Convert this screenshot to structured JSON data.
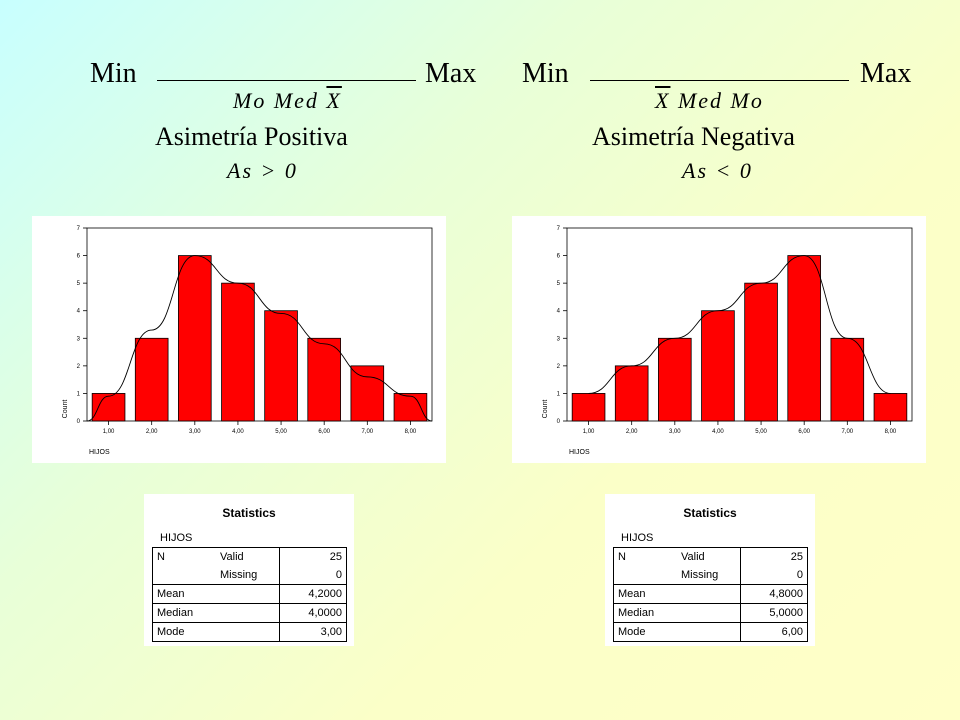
{
  "left": {
    "min_label": "Min",
    "max_label": "Max",
    "order_mo": "Mo",
    "order_med": "Med",
    "order_x": "X",
    "title": "Asimetría Positiva",
    "condition": "As > 0"
  },
  "right": {
    "min_label": "Min",
    "max_label": "Max",
    "order_x": "X",
    "order_med": "Med",
    "order_mo": "Mo",
    "title": "Asimetría Negativa",
    "condition": "As < 0"
  },
  "chart_data": [
    {
      "type": "bar",
      "categories": [
        "1,00",
        "2,00",
        "3,00",
        "4,00",
        "5,00",
        "6,00",
        "7,00",
        "8,00"
      ],
      "values": [
        1,
        3,
        6,
        5,
        4,
        3,
        2,
        1
      ],
      "ylabel": "Count",
      "xlabel": "HIJOS",
      "ylim": [
        0,
        7
      ],
      "yticks": [
        "0",
        "1",
        "2",
        "3",
        "4",
        "5",
        "6",
        "7"
      ],
      "bar_color": "#ff0000",
      "curve": "normal",
      "curve_points": [
        0,
        0.9,
        3.3,
        6.0,
        5.0,
        3.9,
        2.8,
        1.6,
        0.9,
        0
      ]
    },
    {
      "type": "bar",
      "categories": [
        "1,00",
        "2,00",
        "3,00",
        "4,00",
        "5,00",
        "6,00",
        "7,00",
        "8,00"
      ],
      "values": [
        1,
        2,
        3,
        4,
        5,
        6,
        3,
        1
      ],
      "ylabel": "Count",
      "xlabel": "HIJOS",
      "ylim": [
        0,
        7
      ],
      "yticks": [
        "0",
        "1",
        "2",
        "3",
        "4",
        "5",
        "6",
        "7"
      ],
      "bar_color": "#ff0000",
      "curve": "normal",
      "curve_points": [
        1.0,
        2.0,
        3.0,
        4.0,
        5.0,
        6.0,
        3.0,
        1.0
      ]
    }
  ],
  "stats_left": {
    "title": "Statistics",
    "variable": "HIJOS",
    "rows": [
      {
        "l1": "N",
        "l2": "Valid",
        "v": "25"
      },
      {
        "l1": "",
        "l2": "Missing",
        "v": "0"
      },
      {
        "l1": "Mean",
        "l2": "",
        "v": "4,2000"
      },
      {
        "l1": "Median",
        "l2": "",
        "v": "4,0000"
      },
      {
        "l1": "Mode",
        "l2": "",
        "v": "3,00"
      }
    ]
  },
  "stats_right": {
    "title": "Statistics",
    "variable": "HIJOS",
    "rows": [
      {
        "l1": "N",
        "l2": "Valid",
        "v": "25"
      },
      {
        "l1": "",
        "l2": "Missing",
        "v": "0"
      },
      {
        "l1": "Mean",
        "l2": "",
        "v": "4,8000"
      },
      {
        "l1": "Median",
        "l2": "",
        "v": "5,0000"
      },
      {
        "l1": "Mode",
        "l2": "",
        "v": "6,00"
      }
    ]
  }
}
